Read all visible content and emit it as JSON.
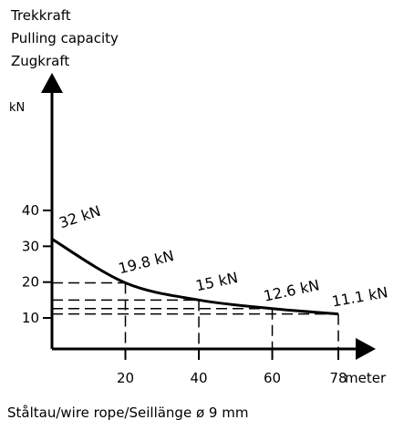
{
  "chart_data": {
    "type": "line",
    "title_lines": [
      "Trekkraft",
      "Pulling capacity",
      "Zugkraft"
    ],
    "ylabel": "kN",
    "xlabel": "meter",
    "xlabel_bottom": "Ståltau/wire rope/Seillänge ø 9 mm",
    "x_ticks": [
      "20",
      "40",
      "60",
      "78"
    ],
    "y_ticks": [
      "10",
      "20",
      "30",
      "40"
    ],
    "xlim": [
      0,
      78
    ],
    "ylim": [
      10,
      40
    ],
    "series": [
      {
        "x": [
          0,
          20,
          40,
          60,
          78
        ],
        "y": [
          32,
          19.8,
          15,
          12.6,
          11.1
        ]
      }
    ],
    "data_labels": [
      "32 kN",
      "19.8 kN",
      "15 kN",
      "12.6 kN",
      "11.1 kN"
    ],
    "guide_lines": "dashed",
    "line_color": "#000000"
  }
}
